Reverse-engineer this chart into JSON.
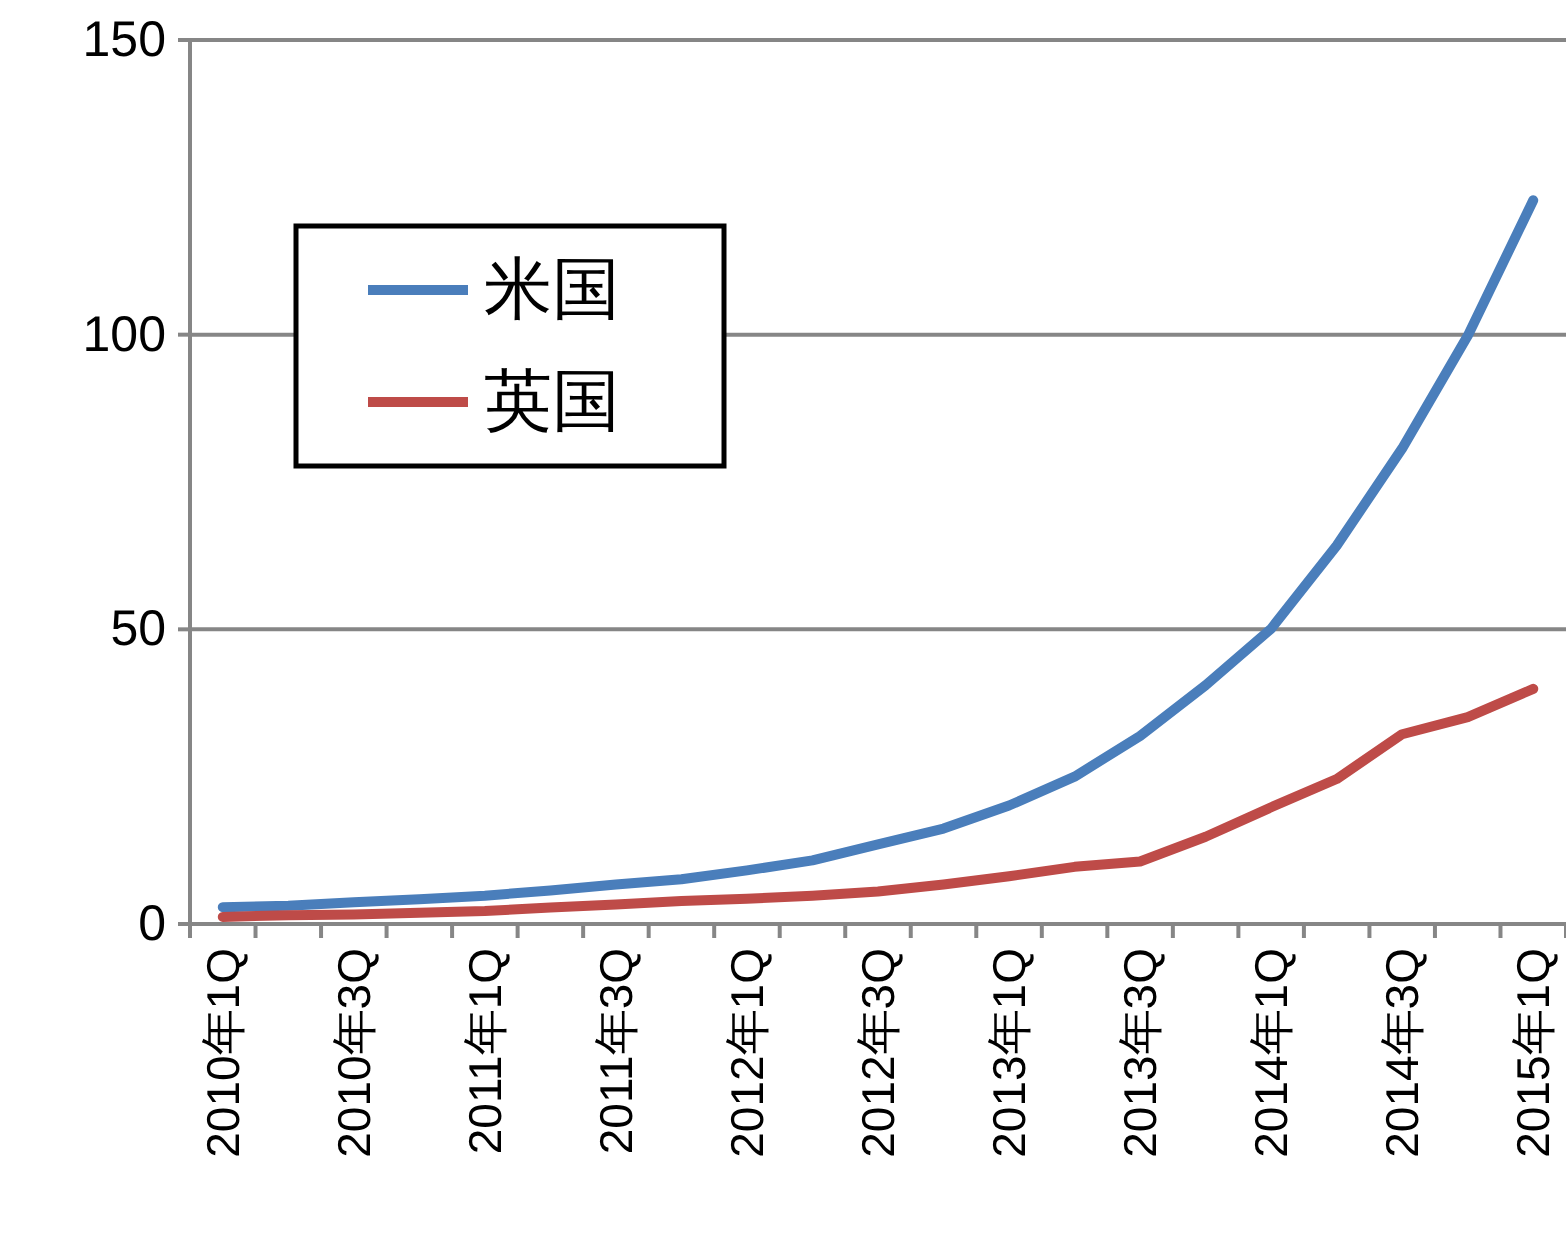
{
  "chart_data": {
    "type": "line",
    "categories": [
      "2010年1Q",
      null,
      "2010年3Q",
      null,
      "2011年1Q",
      null,
      "2011年3Q",
      null,
      "2012年1Q",
      null,
      "2012年3Q",
      null,
      "2013年1Q",
      null,
      "2013年3Q",
      null,
      "2014年1Q",
      null,
      "2014年3Q",
      null,
      "2015年1Q"
    ],
    "series": [
      {
        "name": "米国",
        "color": "#4a7ebb",
        "values": [
          2.85,
          3.1,
          3.7,
          4.2,
          4.8,
          5.7,
          6.7,
          7.6,
          9.1,
          10.8,
          13.5,
          16.2,
          20.1,
          25.0,
          31.9,
          40.5,
          50.1,
          64.2,
          80.7,
          99.8,
          122.8
        ]
      },
      {
        "name": "英国",
        "color": "#be4b48",
        "values": [
          1.2,
          1.5,
          1.6,
          1.9,
          2.2,
          2.8,
          3.3,
          3.9,
          4.3,
          4.8,
          5.5,
          6.7,
          8.1,
          9.7,
          10.6,
          14.8,
          19.8,
          24.6,
          32.2,
          35.1,
          39.9
        ]
      }
    ],
    "ylim": [
      0,
      150
    ],
    "yticks": [
      0,
      50,
      100,
      150
    ],
    "grid": "y",
    "legend": "top left",
    "marker": "none",
    "line_style": "solid"
  }
}
